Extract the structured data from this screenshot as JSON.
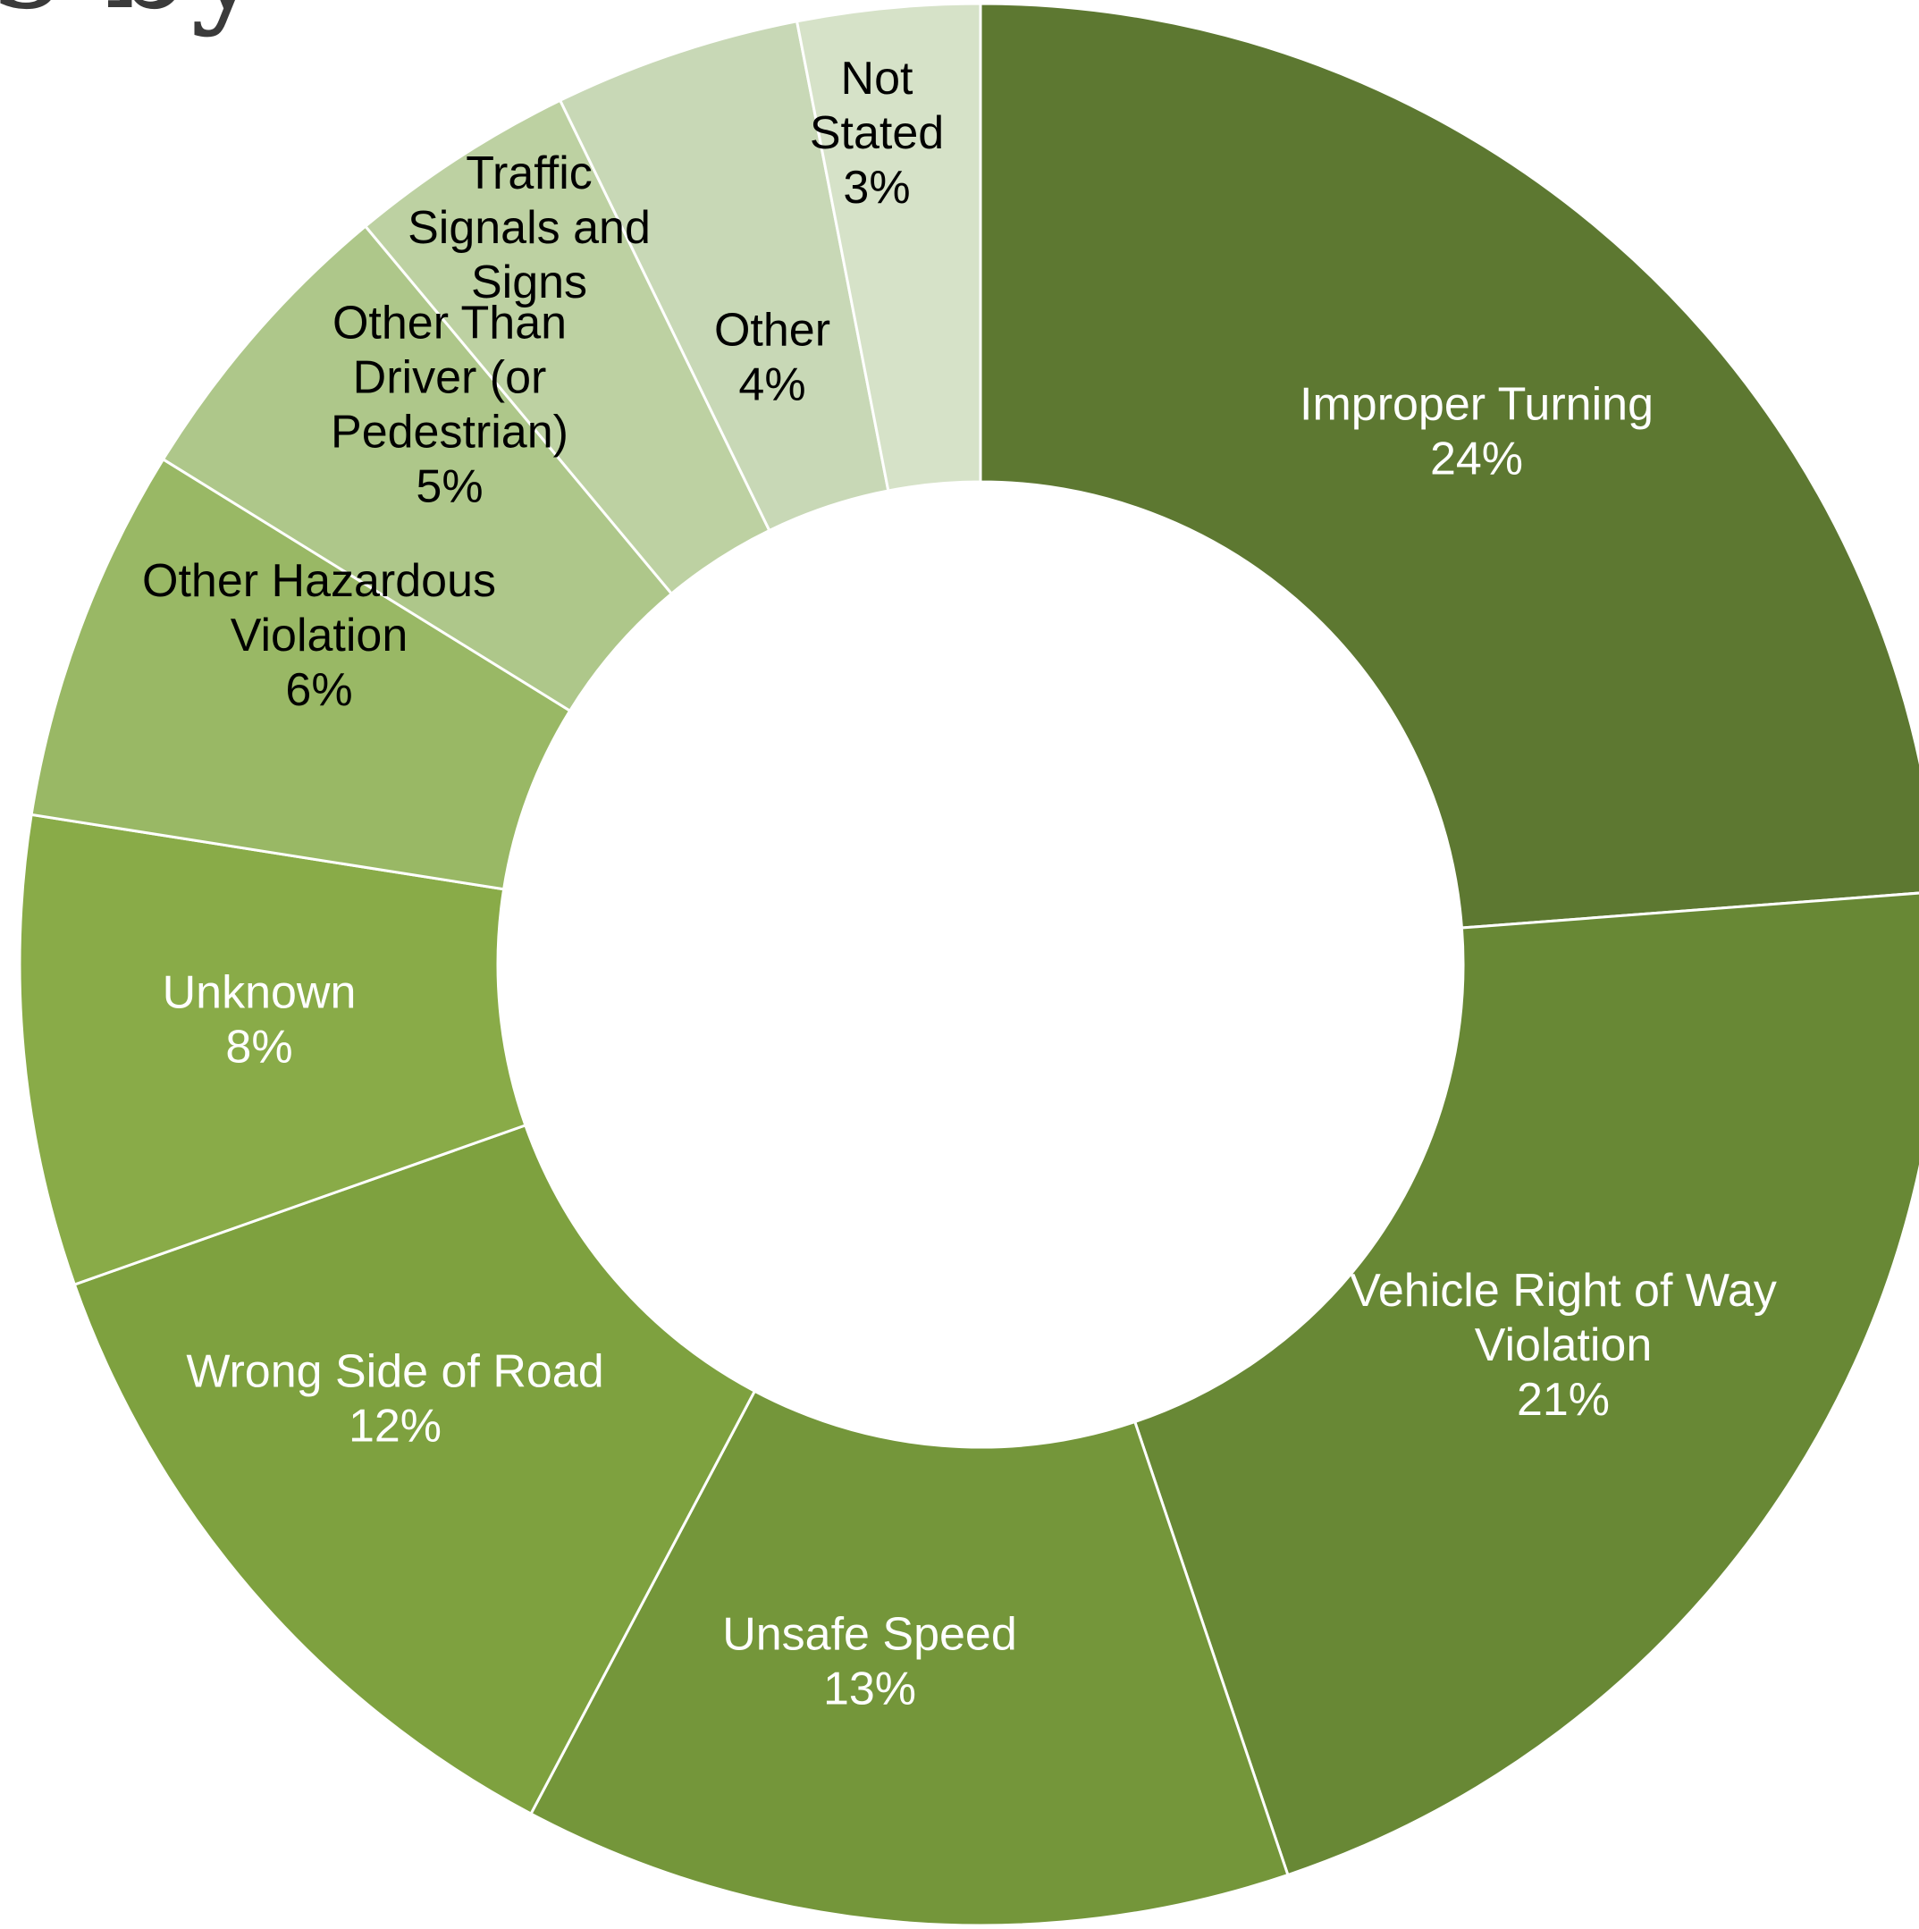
{
  "page": {
    "title_fragment": "s by"
  },
  "chart_data": {
    "type": "pie",
    "variant": "donut",
    "start_angle_deg": 0,
    "direction": "clockwise",
    "slice_separator_color": "#ffffff",
    "categories": [
      "Improper Turning",
      "Vehicle Right of Way Violation",
      "Unsafe Speed",
      "Wrong Side of Road",
      "Unknown",
      "Other Hazardous Violation",
      "Other Than Driver (or Pedestrian)",
      "Traffic Signals and Signs",
      "Other",
      "Not Stated"
    ],
    "values": [
      24.1,
      21.3,
      13.1,
      12.0,
      8.0,
      6.4,
      5.2,
      3.9,
      4.2,
      3.1
    ],
    "slices": [
      {
        "label_lines": [
          "Improper Turning",
          "24%"
        ],
        "color": "#5d7831",
        "text_color": "#ffffff"
      },
      {
        "label_lines": [
          "Vehicle Right of Way",
          "Violation",
          "21%"
        ],
        "color": "#688835",
        "text_color": "#ffffff"
      },
      {
        "label_lines": [
          "Unsafe Speed",
          "13%"
        ],
        "color": "#74963a",
        "text_color": "#ffffff"
      },
      {
        "label_lines": [
          "Wrong Side of Road",
          "12%"
        ],
        "color": "#7ea13f",
        "text_color": "#ffffff"
      },
      {
        "label_lines": [
          "Unknown",
          "8%"
        ],
        "color": "#89ab48",
        "text_color": "#ffffff"
      },
      {
        "label_lines": [
          "Other Hazardous",
          "Violation",
          "6%"
        ],
        "color": "#99b865",
        "text_color": "#000000"
      },
      {
        "label_lines": [
          "Other Than",
          "Driver (or",
          "Pedestrian)",
          "5%"
        ],
        "color": "#aec78a",
        "text_color": "#000000"
      },
      {
        "label_lines": [
          "Traffic",
          "Signals and",
          "Signs"
        ],
        "color": "#bdd1a2",
        "text_color": "#000000"
      },
      {
        "label_lines": [
          "Other",
          "4%"
        ],
        "color": "#c8d8b6",
        "text_color": "#000000"
      },
      {
        "label_lines": [
          "Not",
          "Stated",
          "3%"
        ],
        "color": "#d6e2c8",
        "text_color": "#000000"
      }
    ]
  }
}
